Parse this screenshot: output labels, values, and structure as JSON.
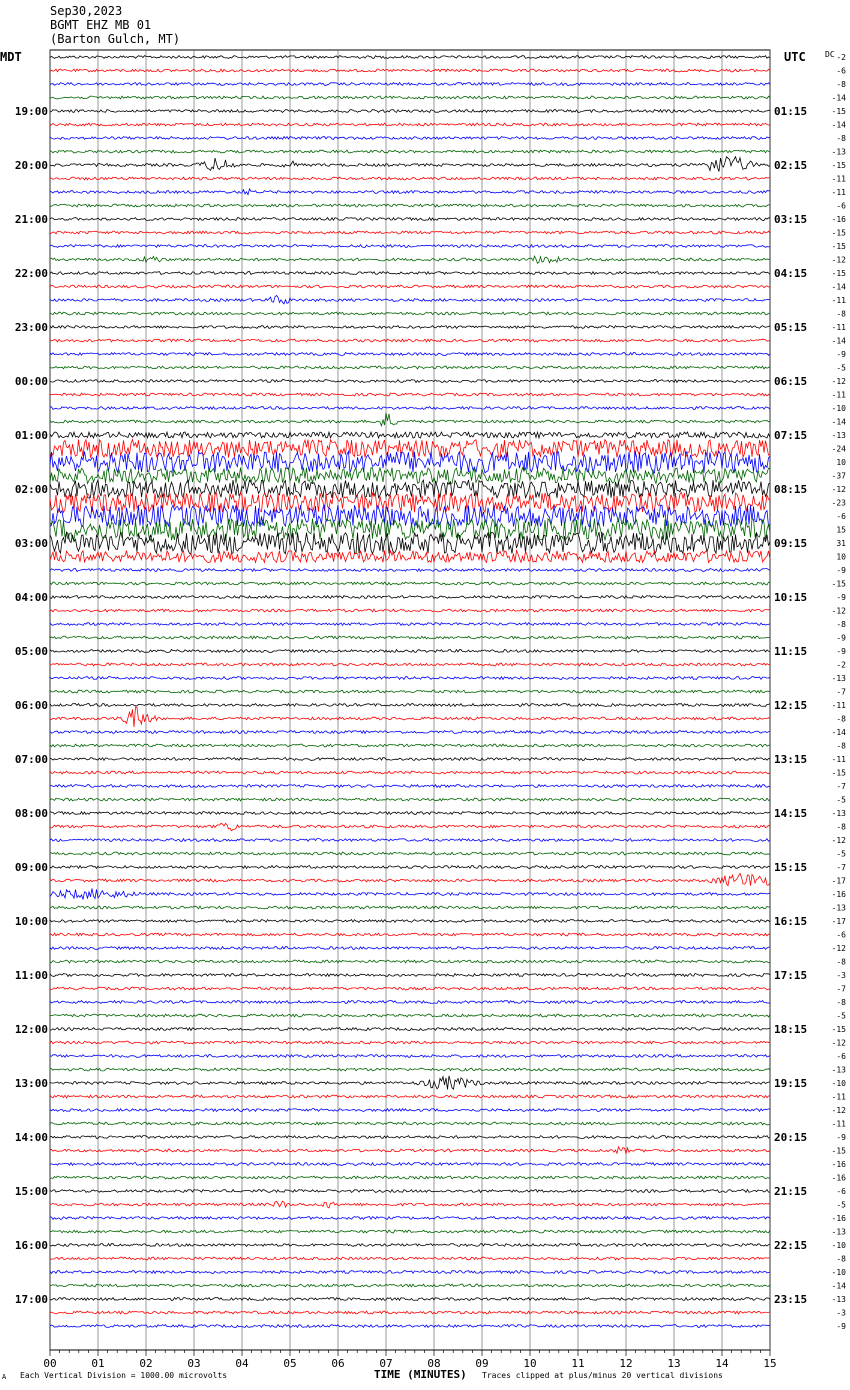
{
  "header": {
    "date": "Sep30,2023",
    "station": "BGMT EHZ MB 01",
    "location": "(Barton Gulch, MT)"
  },
  "tz_left": "MDT",
  "tz_right": "UTC",
  "dc_label": "DC",
  "footer": {
    "mark": "A",
    "scale": "Each Vertical Division = 1000.00 microvolts",
    "xlabel": "TIME (MINUTES)",
    "clip": "Traces clipped at plus/minus 20 vertical divisions"
  },
  "colors": {
    "trace_cycle": [
      "#000000",
      "#ff0000",
      "#0000ff",
      "#006400"
    ],
    "grid": "#000000"
  },
  "chart_data": {
    "type": "line",
    "title": "BGMT EHZ MB 01",
    "x_ticks": [
      "00",
      "01",
      "02",
      "03",
      "04",
      "05",
      "06",
      "07",
      "08",
      "09",
      "10",
      "11",
      "12",
      "13",
      "14",
      "15"
    ],
    "xlim": [
      0,
      15
    ],
    "left_labels": [
      "19:00",
      "20:00",
      "21:00",
      "22:00",
      "23:00",
      "00:00",
      "01:00",
      "02:00",
      "03:00",
      "04:00",
      "05:00",
      "06:00",
      "07:00",
      "08:00",
      "09:00",
      "10:00",
      "11:00",
      "12:00",
      "13:00",
      "14:00",
      "15:00",
      "16:00",
      "17:00"
    ],
    "right_labels": [
      "01:15",
      "02:15",
      "03:15",
      "04:15",
      "05:15",
      "06:15",
      "07:15",
      "08:15",
      "09:15",
      "10:15",
      "11:15",
      "12:15",
      "13:15",
      "14:15",
      "15:15",
      "16:15",
      "17:15",
      "18:15",
      "19:15",
      "20:15",
      "21:15",
      "22:15",
      "23:15"
    ],
    "dc_offsets": [
      "-2",
      "-6",
      "-8",
      "-14",
      "-15",
      "-14",
      "-8",
      "-13",
      "-15",
      "-11",
      "-11",
      "-6",
      "-16",
      "-15",
      "-15",
      "-12",
      "-15",
      "-14",
      "-11",
      "-8",
      "-11",
      "-14",
      "-9",
      "-5",
      "-12",
      "-11",
      "-10",
      "-14",
      "-13",
      "-24",
      "10",
      "-37",
      "-12",
      "-23",
      "-6",
      "15",
      "31",
      "10",
      "-9",
      "-15",
      "-9",
      "-12",
      "-8",
      "-9",
      "-9",
      "-2",
      "-13",
      "-7",
      "-11",
      "-8",
      "-14",
      "-8",
      "-11",
      "-15",
      "-7",
      "-5",
      "-13",
      "-8",
      "-12",
      "-5",
      "-7",
      "-17",
      "-16",
      "-13",
      "-17",
      "-6",
      "-12",
      "-8",
      "-3",
      "-7",
      "-8",
      "-5",
      "-15",
      "-12",
      "-6",
      "-13",
      "-10",
      "-11",
      "-12",
      "-11",
      "-9",
      "-15",
      "-16",
      "-16",
      "-6",
      "-5",
      "-16",
      "-13",
      "-10",
      "-8",
      "-10",
      "-14",
      "-13",
      "-3",
      "-9"
    ],
    "trace_count": 95,
    "events": [
      {
        "trace": 8,
        "minute": 3.5,
        "width": 0.6,
        "amp": 8
      },
      {
        "trace": 8,
        "minute": 5.0,
        "width": 0.3,
        "amp": 5
      },
      {
        "trace": 8,
        "minute": 14.1,
        "width": 0.8,
        "amp": 11
      },
      {
        "trace": 10,
        "minute": 4.1,
        "width": 0.3,
        "amp": 4
      },
      {
        "trace": 15,
        "minute": 2.1,
        "width": 0.4,
        "amp": 5
      },
      {
        "trace": 15,
        "minute": 10.3,
        "width": 0.5,
        "amp": 6
      },
      {
        "trace": 18,
        "minute": 4.8,
        "width": 0.4,
        "amp": 6
      },
      {
        "trace": 27,
        "minute": 7.0,
        "width": 0.3,
        "amp": 10
      },
      {
        "trace": 49,
        "minute": 1.8,
        "width": 0.5,
        "amp": 12
      },
      {
        "trace": 57,
        "minute": 3.7,
        "width": 0.4,
        "amp": 6
      },
      {
        "trace": 61,
        "minute": 14.5,
        "width": 1.0,
        "amp": 9
      },
      {
        "trace": 62,
        "minute": 0.8,
        "width": 1.6,
        "amp": 6
      },
      {
        "trace": 76,
        "minute": 8.3,
        "width": 0.9,
        "amp": 8
      },
      {
        "trace": 81,
        "minute": 11.9,
        "width": 0.3,
        "amp": 5
      },
      {
        "trace": 85,
        "minute": 4.8,
        "width": 0.3,
        "amp": 5
      },
      {
        "trace": 85,
        "minute": 5.8,
        "width": 0.2,
        "amp": 5
      }
    ],
    "noisy_traces": [
      {
        "trace": 28,
        "amp": 3
      },
      {
        "trace": 29,
        "amp": 9
      },
      {
        "trace": 30,
        "amp": 11
      },
      {
        "trace": 31,
        "amp": 8
      },
      {
        "trace": 32,
        "amp": 9
      },
      {
        "trace": 33,
        "amp": 10
      },
      {
        "trace": 34,
        "amp": 11
      },
      {
        "trace": 35,
        "amp": 11
      },
      {
        "trace": 36,
        "amp": 11
      },
      {
        "trace": 37,
        "amp": 6
      }
    ]
  }
}
